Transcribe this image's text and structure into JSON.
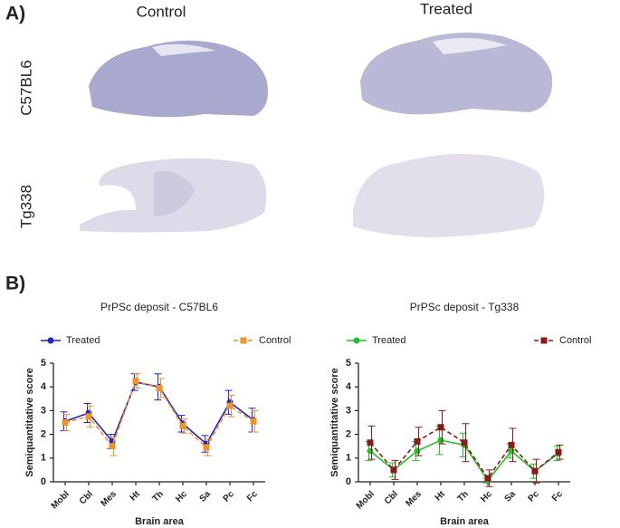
{
  "panel_a": {
    "label": "A)",
    "columns": [
      "Control",
      "Treated"
    ],
    "rows": [
      "C57BL6",
      "Tg338"
    ]
  },
  "panel_b": {
    "label": "B)"
  },
  "chart_data": [
    {
      "type": "line",
      "title": "PrPSc deposit - C57BL6",
      "x_label": "Brain area",
      "y_label": "Semiquantitative score",
      "categories": [
        "Mobl",
        "Cbl",
        "Mes",
        "Ht",
        "Th",
        "Hc",
        "Sa",
        "Pc",
        "Fc"
      ],
      "ylim": [
        0,
        5
      ],
      "yticks": [
        0,
        1,
        2,
        3,
        4,
        5
      ],
      "series": [
        {
          "name": "Treated",
          "color": "#2323c8",
          "line_style": "solid",
          "marker": "circle",
          "values": [
            2.55,
            2.9,
            1.7,
            4.2,
            4.0,
            2.45,
            1.6,
            3.35,
            2.6
          ],
          "errors": [
            0.4,
            0.4,
            0.3,
            0.35,
            0.55,
            0.35,
            0.35,
            0.5,
            0.5
          ]
        },
        {
          "name": "Control",
          "color": "#f0922a",
          "line_style": "dashed",
          "marker": "square",
          "values": [
            2.5,
            2.75,
            1.5,
            4.25,
            3.95,
            2.35,
            1.45,
            3.2,
            2.55
          ],
          "errors": [
            0.35,
            0.45,
            0.4,
            0.3,
            0.4,
            0.3,
            0.35,
            0.45,
            0.45
          ]
        }
      ]
    },
    {
      "type": "line",
      "title": "PrPSc deposit - Tg338",
      "x_label": "Brain area",
      "y_label": "Semiquantitative score",
      "categories": [
        "Mobl",
        "Cbl",
        "Mes",
        "Ht",
        "Th",
        "Hc",
        "Sa",
        "Pc",
        "Fc"
      ],
      "ylim": [
        0,
        5
      ],
      "yticks": [
        0,
        1,
        2,
        3,
        4,
        5
      ],
      "series": [
        {
          "name": "Treated",
          "color": "#22c02a",
          "line_style": "solid",
          "marker": "circle",
          "values": [
            1.3,
            0.5,
            1.3,
            1.75,
            1.55,
            0.05,
            1.3,
            0.45,
            1.2
          ],
          "errors": [
            0.4,
            0.3,
            0.4,
            0.6,
            0.5,
            0.1,
            0.3,
            0.3,
            0.3
          ]
        },
        {
          "name": "Control",
          "color": "#8b1a1a",
          "line_style": "dashed",
          "marker": "square",
          "values": [
            1.65,
            0.5,
            1.7,
            2.3,
            1.65,
            0.15,
            1.55,
            0.45,
            1.25
          ],
          "errors": [
            0.7,
            0.4,
            0.6,
            0.7,
            0.8,
            0.35,
            0.7,
            0.5,
            0.3
          ]
        }
      ]
    }
  ]
}
